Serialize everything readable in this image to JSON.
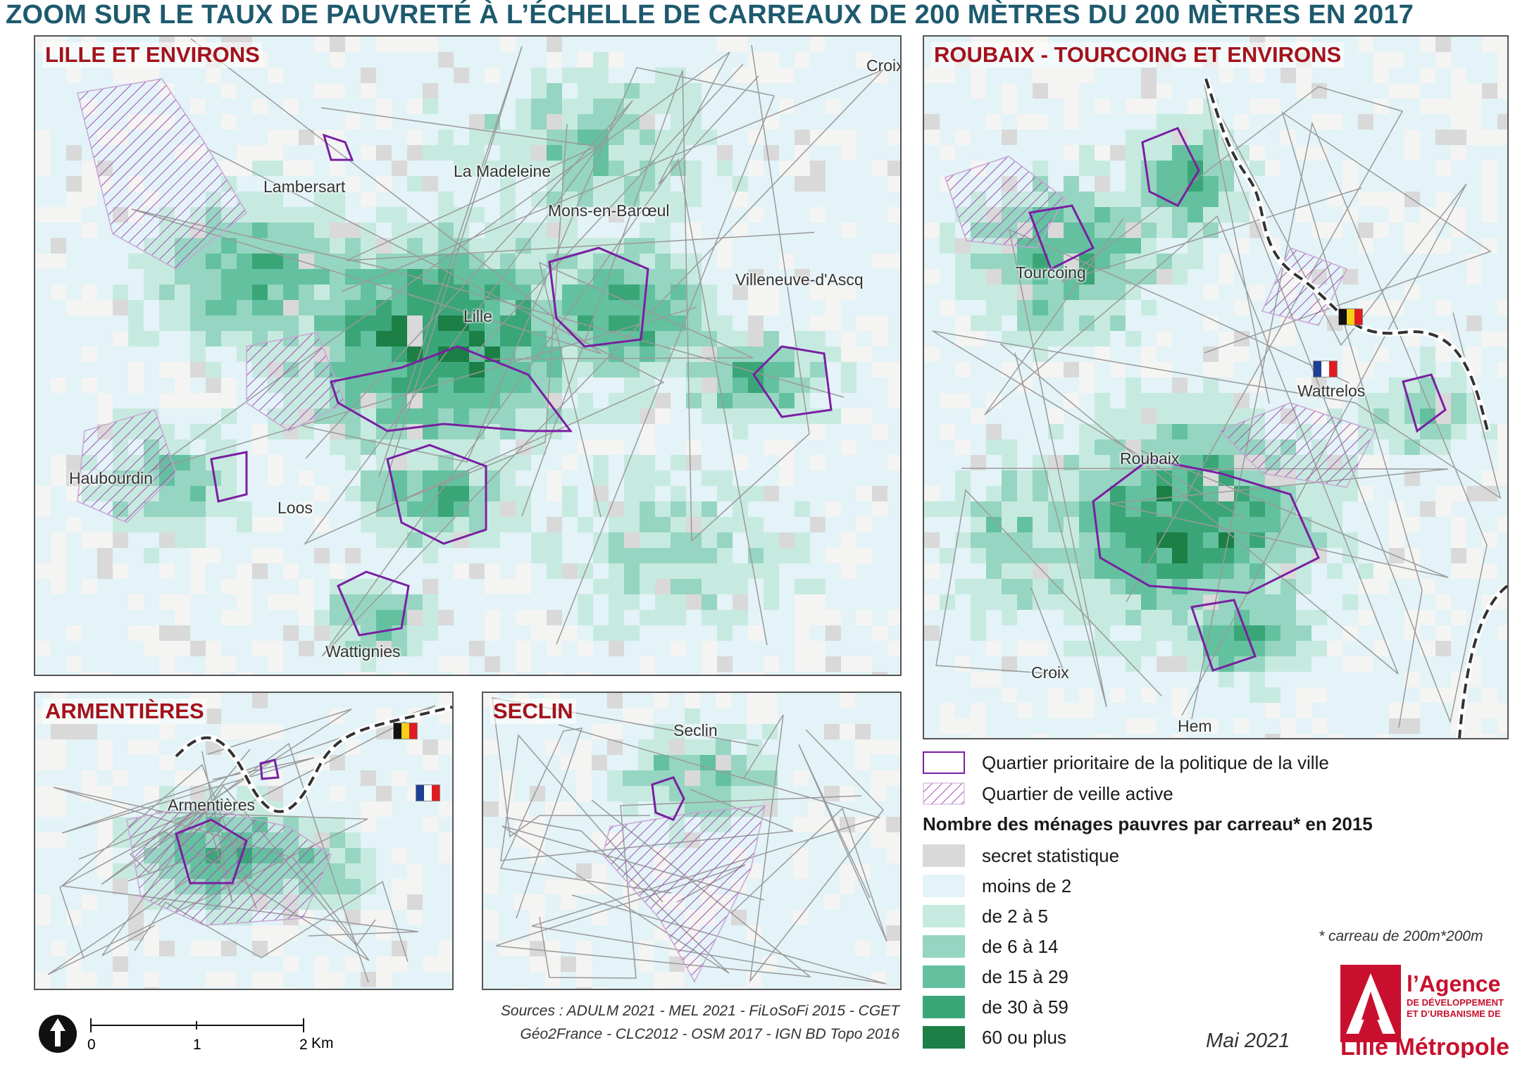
{
  "title": "ZOOM SUR LE TAUX DE PAUVRETÉ À L’ÉCHELLE DE CARREAUX DE 200 MÈTRES DU 200 MÈTRES EN 2017",
  "panels": {
    "lille": {
      "title": "LILLE ET ENVIRONS",
      "places": [
        "Lambersart",
        "La Madeleine",
        "Mons-en-Barœul",
        "Villeneuve-d'Ascq",
        "Lille",
        "Haubourdin",
        "Loos",
        "Wattignies",
        "Croix"
      ]
    },
    "roubaix": {
      "title": "ROUBAIX - TOURCOING ET ENVIRONS",
      "places": [
        "Tourcoing",
        "Wattrelos",
        "Roubaix",
        "Croix",
        "Hem"
      ]
    },
    "armentieres": {
      "title": "ARMENTIÈRES",
      "places": [
        "Armentières"
      ]
    },
    "seclin": {
      "title": "SECLIN",
      "places": [
        "Seclin"
      ]
    }
  },
  "legend": {
    "qpv_label": "Quartier prioritaire de la politique de la ville",
    "veille_label": "Quartier de veille active",
    "heading": "Nombre des ménages pauvres par carreau* en 2015",
    "classes": [
      {
        "label": "secret statistique",
        "color": "#d9d9d9"
      },
      {
        "label": "moins de 2",
        "color": "#e3f3f8"
      },
      {
        "label": "de 2 à 5",
        "color": "#c7eae0"
      },
      {
        "label": "de 6 à 14",
        "color": "#96d5c1"
      },
      {
        "label": "de 15 à 29",
        "color": "#63c19f"
      },
      {
        "label": "de 30 à 59",
        "color": "#3aa678"
      },
      {
        "label": "60 ou plus",
        "color": "#1b7f46"
      }
    ],
    "note": "* carreau de 200m*200m"
  },
  "colors": {
    "qpv": "#7a1fa2",
    "veille": "#a04fb5",
    "border": "#222222",
    "title": "#1e5a6e",
    "panel_title": "#a3121b"
  },
  "sources": {
    "line1": "Sources : ADULM 2021 - MEL 2021 - FiLoSoFi 2015 - CGET",
    "line2": "Géo2France - CLC2012 -  OSM 2017 - IGN BD Topo 2016"
  },
  "scale": {
    "labels": [
      "0",
      "1",
      "2"
    ],
    "unit": "Km"
  },
  "date": "Mai 2021",
  "logo": {
    "line1": "l’Agence",
    "line2": "DE DÉVELOPPEMENT",
    "line3": "ET D’URBANISME DE",
    "line4": "Lille Métropole"
  }
}
